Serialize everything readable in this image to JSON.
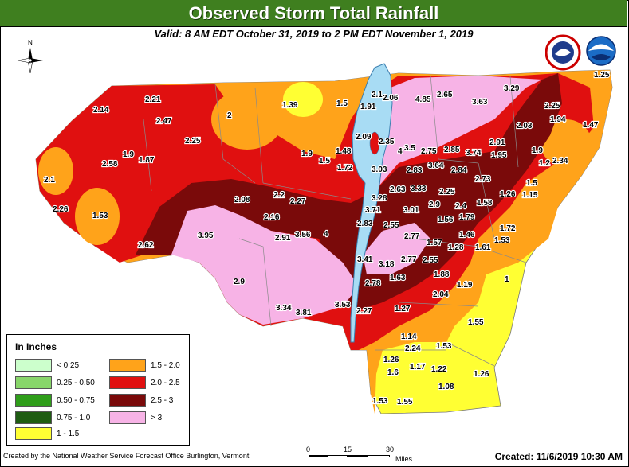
{
  "title": "Observed Storm Total Rainfall",
  "subtitle": "Valid: 8 AM EDT October 31, 2019 to 2 PM EDT November 1, 2019",
  "north_label": "N",
  "legend": {
    "title": "In Inches",
    "items": [
      {
        "label": "< 0.25",
        "color": "#ccffcc"
      },
      {
        "label": "0.25 - 0.50",
        "color": "#88d66a"
      },
      {
        "label": "0.50 - 0.75",
        "color": "#2f9e1a"
      },
      {
        "label": "0.75 - 1.0",
        "color": "#1e5c12"
      },
      {
        "label": "1 - 1.5",
        "color": "#ffff33"
      },
      {
        "label": "1.5 - 2.0",
        "color": "#ffa31a"
      },
      {
        "label": "2.0 - 2.5",
        "color": "#e01010"
      },
      {
        "label": "2.5 - 3",
        "color": "#7a0a0a"
      },
      {
        "label": "> 3",
        "color": "#f7b3e6"
      }
    ]
  },
  "footer_left": "Created by the National Weather Service Forecast Office Burlington, Vermont",
  "footer_right": "Created: 11/6/2019 10:30 AM",
  "scale": {
    "t0": "0",
    "t1": "15",
    "t2": "30",
    "unit": "Miles"
  },
  "rainfall_values": [
    "1.25",
    "3.29",
    "2.1",
    "2.06",
    "4.85",
    "2.65",
    "3.63",
    "1.39",
    "1.5",
    "1.91",
    "2.21",
    "2.14",
    "2.47",
    "2",
    "2.25",
    "1.94",
    "1.47",
    "2.03",
    "2.25",
    "2.09",
    "2.35",
    "4",
    "3.5",
    "2.75",
    "2.85",
    "3.74",
    "2.91",
    "1.9",
    "1.95",
    "1.9",
    "1.2",
    "2.34",
    "1.9",
    "1.87",
    "2.58",
    "1.48",
    "1.5",
    "1.72",
    "3.03",
    "2.83",
    "3.64",
    "2.84",
    "2.73",
    "2.1",
    "1.5",
    "1.26",
    "1.15",
    "2.26",
    "1.53",
    "2.08",
    "2.2",
    "2.27",
    "3.28",
    "2.63",
    "3.33",
    "2.25",
    "2.9",
    "2.4",
    "1.58",
    "3.71",
    "3.01",
    "1.56",
    "1.79",
    "2.16",
    "2.83",
    "2.55",
    "2.62",
    "3.95",
    "2.91",
    "3.56",
    "4",
    "2.77",
    "1.57",
    "1.46",
    "1.72",
    "1.53",
    "1.28",
    "1.61",
    "3.41",
    "3.18",
    "2.77",
    "2.55",
    "2.9",
    "2.78",
    "1.63",
    "1.88",
    "1",
    "1.19",
    "2.04",
    "3.34",
    "3.81",
    "3.53",
    "2.27",
    "1.27",
    "1.55",
    "1.14",
    "2.24",
    "1.53",
    "1.26",
    "1.6",
    "1.17",
    "1.22",
    "1.26",
    "1.08",
    "1.53",
    "1.55"
  ]
}
